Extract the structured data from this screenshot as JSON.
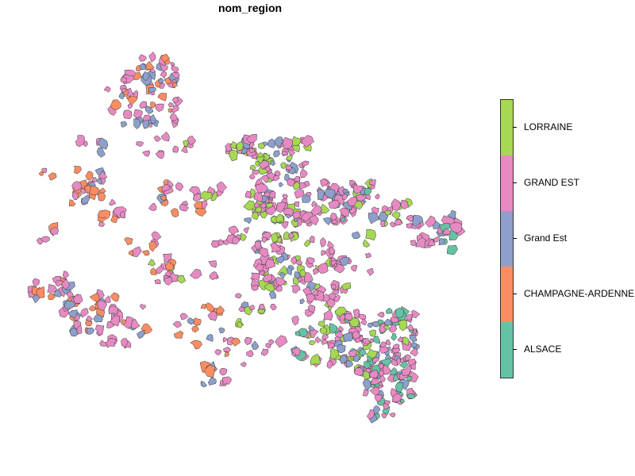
{
  "title": "nom_region",
  "legend": {
    "items": [
      {
        "label": "LORRAINE",
        "color": "#a6d854"
      },
      {
        "label": "GRAND EST",
        "color": "#e78ac3"
      },
      {
        "label": "Grand Est",
        "color": "#8da0cb"
      },
      {
        "label": "CHAMPAGNE-ARDENNE",
        "color": "#fc8d62"
      },
      {
        "label": "ALSACE",
        "color": "#66c2a5"
      }
    ]
  }
}
